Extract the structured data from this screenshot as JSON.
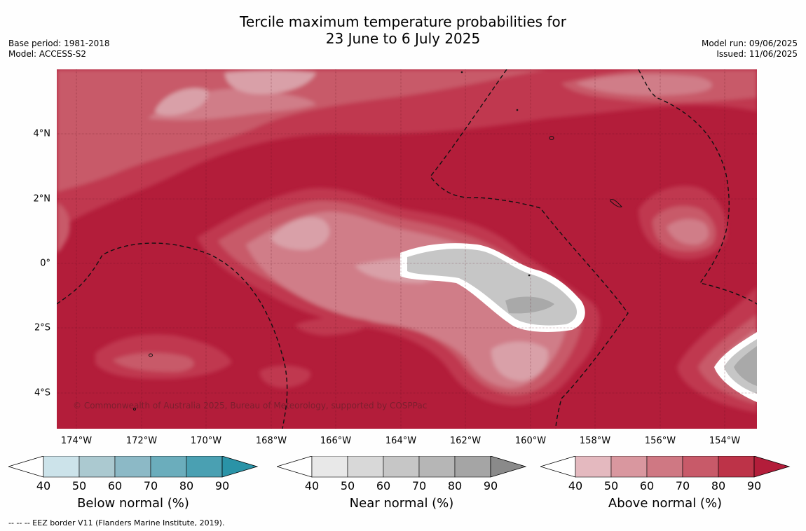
{
  "title": {
    "line1": "Tercile maximum temperature probabilities for",
    "line2": "23 June to 6 July 2025"
  },
  "meta": {
    "base_period": "Base period: 1981-2018",
    "model": "Model: ACCESS-S2",
    "model_run": "Model run: 09/06/2025",
    "issued": "Issued: 11/06/2025"
  },
  "map": {
    "x_ticks": [
      "174°W",
      "172°W",
      "170°W",
      "168°W",
      "166°W",
      "164°W",
      "162°W",
      "160°W",
      "158°W",
      "156°W",
      "154°W"
    ],
    "y_ticks": [
      "4°N",
      "2°N",
      "0°",
      "2°S",
      "4°S"
    ],
    "credit": "© Commonwealth of Australia 2025, Bureau of Meteorology, supported by COSPPac",
    "colors": {
      "above_90": "#b31d3a",
      "above_80": "#c03850",
      "above_70": "#c85a69",
      "above_60": "#d07d88",
      "above_50": "#d9a0a8",
      "near_70": "#c6c6c6",
      "near_80": "#a9a9a9"
    }
  },
  "legends": [
    {
      "title": "Below normal (%)",
      "ticks": [
        "40",
        "50",
        "60",
        "70",
        "80",
        "90"
      ],
      "colors": [
        "#cce3ea",
        "#abc9d0",
        "#8cb9c6",
        "#6badbc",
        "#4aa0b2",
        "#2a93a7"
      ]
    },
    {
      "title": "Near normal (%)",
      "ticks": [
        "40",
        "50",
        "60",
        "70",
        "80",
        "90"
      ],
      "colors": [
        "#e8e8e8",
        "#d8d8d8",
        "#c6c6c6",
        "#b6b6b6",
        "#a5a5a5",
        "#8a8a8a"
      ]
    },
    {
      "title": "Above normal (%)",
      "ticks": [
        "40",
        "50",
        "60",
        "70",
        "80",
        "90"
      ],
      "colors": [
        "#e4b9bf",
        "#d9979f",
        "#cf7883",
        "#c85a69",
        "#bd3348",
        "#b31d3a"
      ]
    }
  ],
  "footer": "--  --  -- EEZ border V11 (Flanders Marine Institute, 2019)."
}
